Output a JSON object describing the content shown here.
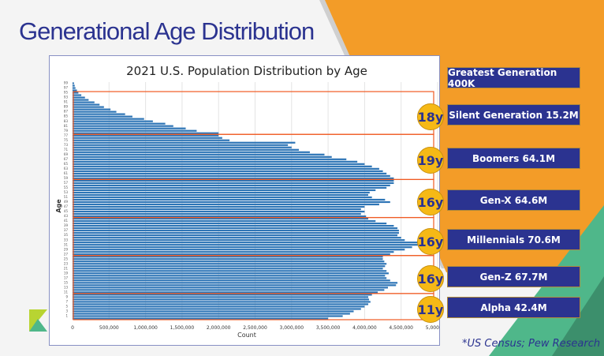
{
  "slide": {
    "title": "Generational Age Distribution",
    "source": "*US Census; Pew Research"
  },
  "colors": {
    "navy": "#2b3390",
    "orange": "#f39c28",
    "green": "#4fb78a",
    "bar": "#2e75b6",
    "badge": "#f6b916",
    "divider": "#f05a22"
  },
  "generations": [
    {
      "label": "Greatest Generation 400K"
    },
    {
      "label": "Silent Generation 15.2M",
      "span": "18y",
      "ages": [
        78,
        95
      ]
    },
    {
      "label": "Boomers 64.1M",
      "span": "19y",
      "ages": [
        59,
        77
      ]
    },
    {
      "label": "Gen-X 64.6M",
      "span": "16y",
      "ages": [
        43,
        58
      ]
    },
    {
      "label": "Millennials 70.6M",
      "span": "16y",
      "ages": [
        27,
        42
      ]
    },
    {
      "label": "Gen-Z 67.7M",
      "span": "16y",
      "ages": [
        11,
        26
      ]
    },
    {
      "label": "Alpha 42.4M",
      "span": "11y",
      "ages": [
        0,
        10
      ]
    }
  ],
  "chart_data": {
    "type": "bar",
    "orientation": "horizontal",
    "title": "2021 U.S. Population Distribution by Age",
    "xlabel": "Count",
    "ylabel": "Age",
    "xlim": [
      0,
      5000000
    ],
    "xticks": [
      "0",
      "500,000",
      "1,000,000",
      "1,500,000",
      "2,000,000",
      "2,500,000",
      "3,000,000",
      "3,500,000",
      "4,000,000",
      "4,500,000",
      "5,000,000"
    ],
    "yticks": [
      "1",
      "3",
      "5",
      "7",
      "9",
      "11",
      "13",
      "15",
      "17",
      "19",
      "21",
      "23",
      "25",
      "27",
      "29",
      "31",
      "33",
      "35",
      "37",
      "39",
      "41",
      "43",
      "45",
      "47",
      "49",
      "51",
      "53",
      "55",
      "57",
      "59",
      "61",
      "63",
      "65",
      "67",
      "69",
      "71",
      "73",
      "75",
      "77",
      "79",
      "81",
      "83",
      "85",
      "87",
      "89",
      "91",
      "93",
      "95",
      "97",
      "99"
    ],
    "ages_start": 0,
    "values": [
      3500000,
      3700000,
      3800000,
      3850000,
      3950000,
      4000000,
      4050000,
      4080000,
      4060000,
      4050000,
      4100000,
      4180000,
      4270000,
      4320000,
      4430000,
      4450000,
      4350000,
      4300000,
      4280000,
      4330000,
      4300000,
      4250000,
      4280000,
      4300000,
      4270000,
      4250000,
      4250000,
      4350000,
      4400000,
      4550000,
      4650000,
      4750000,
      4730000,
      4550000,
      4500000,
      4450000,
      4470000,
      4470000,
      4450000,
      4400000,
      4300000,
      4150000,
      4050000,
      4020000,
      3950000,
      4000000,
      3950000,
      4000000,
      4200000,
      4350000,
      4280000,
      4100000,
      4050000,
      4070000,
      4150000,
      4300000,
      4350000,
      4400000,
      4400000,
      4400000,
      4350000,
      4300000,
      4250000,
      4200000,
      4100000,
      4000000,
      3900000,
      3750000,
      3550000,
      3450000,
      3250000,
      3100000,
      3000000,
      2950000,
      3050000,
      2150000,
      2050000,
      2000000,
      2000000,
      1700000,
      1550000,
      1380000,
      1270000,
      1100000,
      980000,
      820000,
      720000,
      600000,
      520000,
      430000,
      370000,
      300000,
      220000,
      170000,
      120000,
      80000,
      60000,
      40000,
      30000,
      20000
    ]
  }
}
